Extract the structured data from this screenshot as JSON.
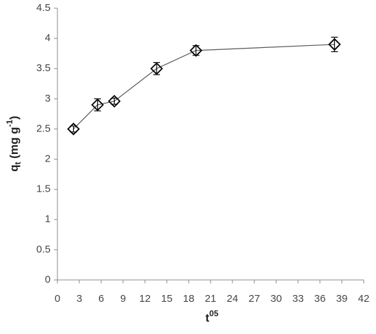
{
  "chart_data": {
    "type": "scatter",
    "x_label": [
      "t",
      "05"
    ],
    "y_label": [
      "q",
      "t",
      " (mg g",
      "-1",
      ")"
    ],
    "xlim": [
      0,
      42
    ],
    "xticks": [
      0,
      3,
      6,
      9,
      12,
      15,
      18,
      21,
      24,
      27,
      30,
      33,
      36,
      39,
      42
    ],
    "ylim": [
      0,
      4.5
    ],
    "yticks": [
      0,
      0.5,
      1,
      1.5,
      2,
      2.5,
      3,
      3.5,
      4,
      4.5
    ],
    "grid": false,
    "series": [
      {
        "color": "#000000",
        "x": [
          2.2,
          5.5,
          7.8,
          13.6,
          19,
          38
        ],
        "values": [
          2.5,
          2.9,
          2.96,
          3.5,
          3.8,
          3.9
        ],
        "errors": [
          0.05,
          0.1,
          0.05,
          0.1,
          0.08,
          0.12
        ]
      }
    ]
  }
}
